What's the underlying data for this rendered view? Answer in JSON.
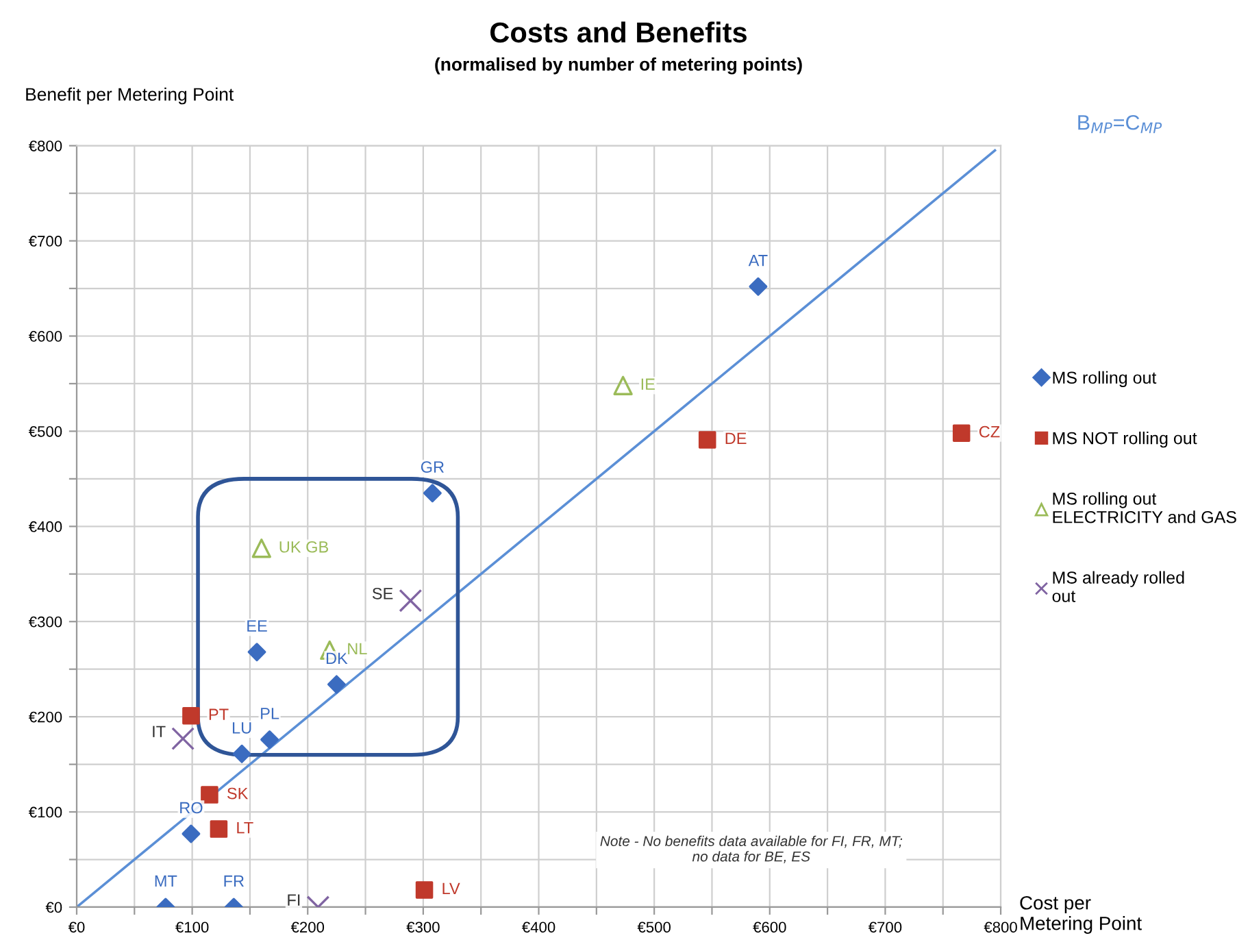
{
  "chart_data": {
    "type": "scatter",
    "title": "Costs and Benefits",
    "subtitle": "(normalised by number of metering points)",
    "xlabel": "Cost per\nMetering Point",
    "ylabel": "Benefit per Metering Point",
    "xlim": [
      0,
      800
    ],
    "ylim": [
      0,
      800
    ],
    "xticks": [
      {
        "value": 0,
        "label": "€0"
      },
      {
        "value": 50,
        "label": null
      },
      {
        "value": 100,
        "label": "€100"
      },
      {
        "value": 150,
        "label": null
      },
      {
        "value": 200,
        "label": "€200"
      },
      {
        "value": 250,
        "label": null
      },
      {
        "value": 300,
        "label": "€300"
      },
      {
        "value": 350,
        "label": null
      },
      {
        "value": 400,
        "label": "€400"
      },
      {
        "value": 450,
        "label": null
      },
      {
        "value": 500,
        "label": "€500"
      },
      {
        "value": 550,
        "label": null
      },
      {
        "value": 600,
        "label": "€600"
      },
      {
        "value": 650,
        "label": null
      },
      {
        "value": 700,
        "label": "€700"
      },
      {
        "value": 750,
        "label": null
      },
      {
        "value": 800,
        "label": "€800"
      }
    ],
    "yticks": [
      {
        "value": 0,
        "label": "€0"
      },
      {
        "value": 50,
        "label": null
      },
      {
        "value": 100,
        "label": "€100"
      },
      {
        "value": 150,
        "label": null
      },
      {
        "value": 200,
        "label": "€200"
      },
      {
        "value": 250,
        "label": null
      },
      {
        "value": 300,
        "label": "€300"
      },
      {
        "value": 350,
        "label": null
      },
      {
        "value": 400,
        "label": "€400"
      },
      {
        "value": 450,
        "label": null
      },
      {
        "value": 500,
        "label": "€500"
      },
      {
        "value": 550,
        "label": null
      },
      {
        "value": 600,
        "label": "€600"
      },
      {
        "value": 650,
        "label": null
      },
      {
        "value": 700,
        "label": "€700"
      },
      {
        "value": 750,
        "label": null
      },
      {
        "value": 800,
        "label": "€800"
      }
    ],
    "grid": true,
    "legend": "right",
    "series": [
      {
        "name": "MS rolling out",
        "color": "#3b6cc0",
        "marker": "diamond",
        "x": [
          77,
          136,
          99,
          143,
          167,
          225,
          156,
          308,
          590
        ],
        "values": [
          0,
          0,
          77,
          161,
          176,
          234,
          268,
          435,
          652
        ]
      },
      {
        "name": "MS NOT rolling out",
        "color": "#c0392b",
        "marker": "square",
        "x": [
          301,
          123,
          115,
          99,
          546,
          766
        ],
        "values": [
          18,
          82,
          118,
          201,
          491,
          498
        ]
      },
      {
        "name": "MS rolling out ELECTRICITY and GAS",
        "color": "#9bbb59",
        "marker": "triangle",
        "x": [
          219,
          160,
          473
        ],
        "values": [
          270,
          377,
          548
        ]
      },
      {
        "name": "MS already rolled out",
        "color": "#8064a2",
        "marker": "cross",
        "x": [
          209,
          92,
          289
        ],
        "values": [
          0,
          177,
          322
        ]
      },
      {
        "name": "B$_{MP}$=C$_{MP}$",
        "type": "line",
        "color": "#5b8fd6",
        "marker": "none",
        "x": [
          0,
          795
        ],
        "values": [
          0,
          795
        ]
      }
    ],
    "annotations": [
      {
        "text": "MT",
        "x": 77,
        "y": 0
      },
      {
        "text": "FR",
        "x": 136,
        "y": 0
      },
      {
        "text": "RO",
        "x": 99,
        "y": 77
      },
      {
        "text": "LU",
        "x": 143,
        "y": 161
      },
      {
        "text": "PL",
        "x": 167,
        "y": 176
      },
      {
        "text": "DK",
        "x": 225,
        "y": 234
      },
      {
        "text": "EE",
        "x": 156,
        "y": 268
      },
      {
        "text": "GR",
        "x": 308,
        "y": 435
      },
      {
        "text": "AT",
        "x": 590,
        "y": 652
      },
      {
        "text": "LV",
        "x": 301,
        "y": 18
      },
      {
        "text": "LT",
        "x": 123,
        "y": 82
      },
      {
        "text": "SK",
        "x": 115,
        "y": 118
      },
      {
        "text": "PT",
        "x": 99,
        "y": 201
      },
      {
        "text": "DE",
        "x": 546,
        "y": 491
      },
      {
        "text": "CZ",
        "x": 766,
        "y": 498
      },
      {
        "text": "NL",
        "x": 219,
        "y": 270
      },
      {
        "text": "UK GB",
        "x": 160,
        "y": 377
      },
      {
        "text": "IE",
        "x": 473,
        "y": 548
      },
      {
        "text": "FI",
        "x": 209,
        "y": 0
      },
      {
        "text": "IT",
        "x": 92,
        "y": 177
      },
      {
        "text": "SE",
        "x": 289,
        "y": 322
      },
      "Note - No benefits data available for FI, FR, MT;\nno data for BE, ES"
    ]
  }
}
